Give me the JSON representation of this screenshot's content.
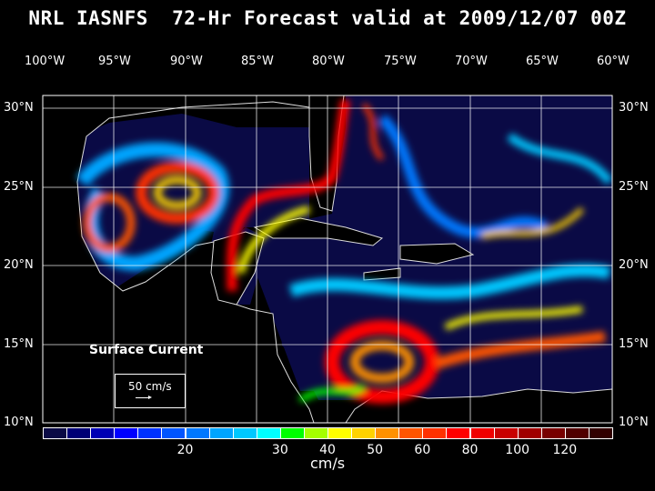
{
  "title": "NRL IASNFS  72-Hr Forecast valid at 2009/12/07 00Z",
  "lon_labels": [
    "100°W",
    "95°W",
    "90°W",
    "85°W",
    "80°W",
    "75°W",
    "70°W",
    "65°W",
    "60°W"
  ],
  "lat_labels": [
    "30°N",
    "25°N",
    "20°N",
    "15°N",
    "10°N"
  ],
  "legend": {
    "title": "Surface Current",
    "scale_label": "50 cm/s"
  },
  "colorbar": {
    "colors": [
      "#0a0a45",
      "#000075",
      "#0000b4",
      "#0000ff",
      "#0032ff",
      "#0055ff",
      "#0078ff",
      "#00a5ff",
      "#00c8ff",
      "#00ffff",
      "#00ff00",
      "#a5ff00",
      "#ffff00",
      "#ffd200",
      "#ff9100",
      "#ff5500",
      "#ff3200",
      "#ff0000",
      "#f00000",
      "#c80000",
      "#a00000",
      "#780000",
      "#500000",
      "#320000"
    ],
    "tick_labels": [
      {
        "label": "20",
        "after_box": 6
      },
      {
        "label": "30",
        "after_box": 10
      },
      {
        "label": "40",
        "after_box": 12
      },
      {
        "label": "50",
        "after_box": 14
      },
      {
        "label": "60",
        "after_box": 16
      },
      {
        "label": "80",
        "after_box": 18
      },
      {
        "label": "100",
        "after_box": 20
      },
      {
        "label": "120",
        "after_box": 22
      }
    ],
    "units": "cm/s"
  }
}
